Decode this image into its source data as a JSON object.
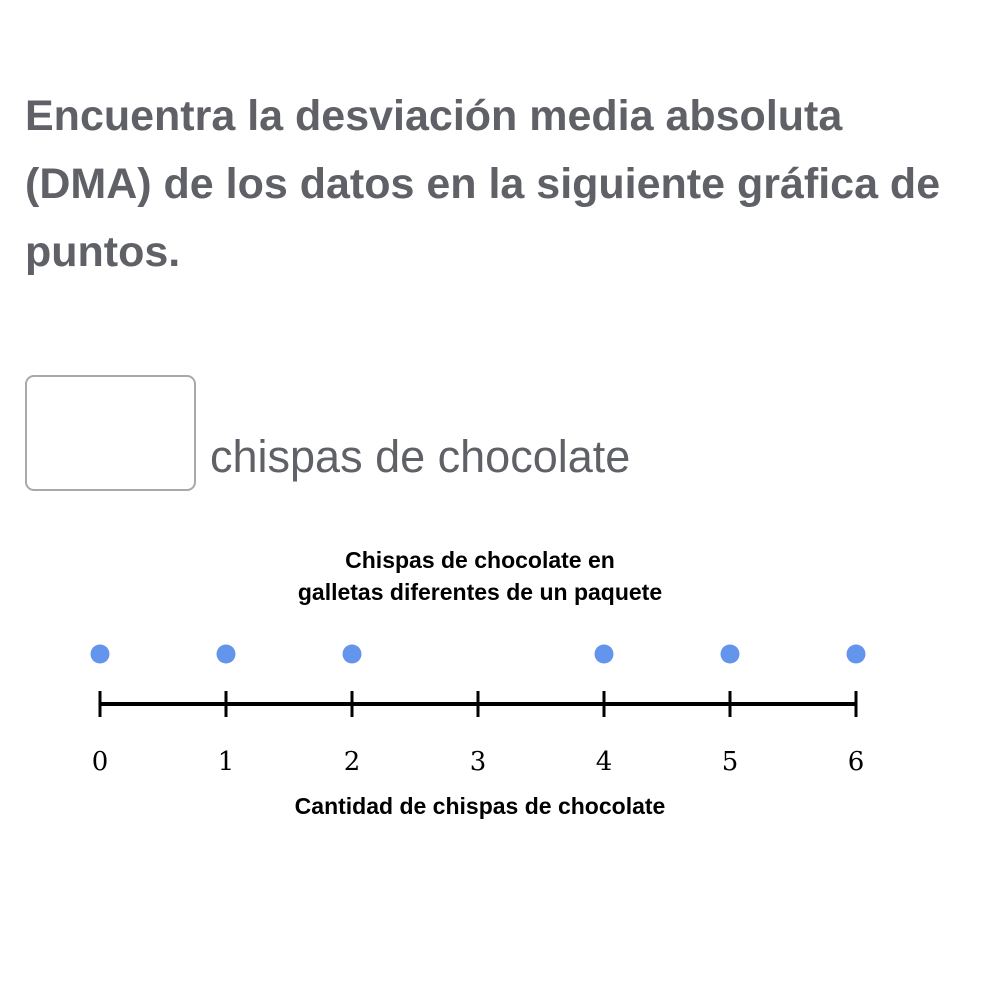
{
  "question": {
    "text": "Encuentra la desviación media absoluta (DMA) de los datos en la siguiente gráfica de puntos."
  },
  "answer": {
    "value": "",
    "unit_label": "chispas de chocolate"
  },
  "colors": {
    "dot": "#6495ed",
    "axis": "#000000",
    "text": "#5f6166"
  },
  "chart_data": {
    "type": "scatter",
    "title_lines": [
      "Chispas de chocolate en",
      "galletas diferentes de un paquete"
    ],
    "xlabel": "Cantidad de chispas de chocolate",
    "xlim": [
      0,
      6
    ],
    "ticks": [
      0,
      1,
      2,
      3,
      4,
      5,
      6
    ],
    "tick_labels": [
      "0",
      "1",
      "2",
      "3",
      "4",
      "5",
      "6"
    ],
    "points": [
      {
        "x": 0,
        "count": 1
      },
      {
        "x": 1,
        "count": 1
      },
      {
        "x": 2,
        "count": 1
      },
      {
        "x": 4,
        "count": 1
      },
      {
        "x": 5,
        "count": 1
      },
      {
        "x": 6,
        "count": 1
      }
    ]
  }
}
